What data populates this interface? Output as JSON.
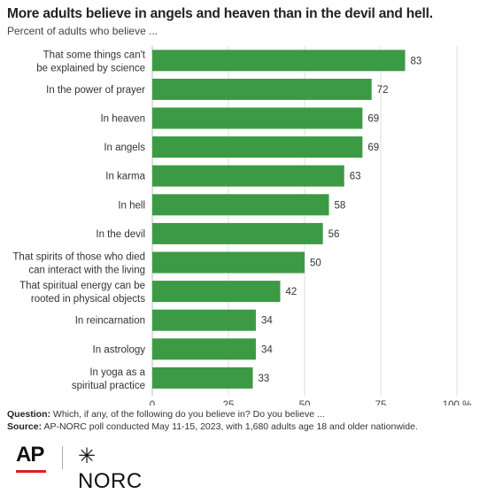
{
  "title": "More adults believe in angels and heaven than in the devil and hell.",
  "subtitle": "Percent of adults who believe ...",
  "colors": {
    "bar": "#3c9a45",
    "grid": "#dddddd",
    "axis": "#bbbbbb"
  },
  "chart_data": {
    "type": "bar",
    "orientation": "horizontal",
    "categories": [
      [
        "That some things can't",
        "be explained by science"
      ],
      [
        "In the power of prayer"
      ],
      [
        "In heaven"
      ],
      [
        "In angels"
      ],
      [
        "In karma"
      ],
      [
        "In hell"
      ],
      [
        "In the devil"
      ],
      [
        "That spirits of those who died",
        "can interact with the living"
      ],
      [
        "That spiritual energy can be",
        "rooted in physical objects"
      ],
      [
        "In reincarnation"
      ],
      [
        "In astrology"
      ],
      [
        "In yoga as a",
        "spiritual practice"
      ]
    ],
    "values": [
      83,
      72,
      69,
      69,
      63,
      58,
      56,
      50,
      42,
      34,
      34,
      33
    ],
    "xlim": [
      0,
      100
    ],
    "xticks": [
      0,
      25,
      50,
      75,
      100
    ],
    "xtick_labels": [
      "0",
      "25",
      "50",
      "75",
      "100 %"
    ],
    "grid": true
  },
  "notes": {
    "question_label": "Question:",
    "question_text": "Which, if any, of the following do you believe in? Do you believe ...",
    "source_label": "Source:",
    "source_text": "AP-NORC poll conducted May 11-15, 2023, with 1,680 adults age 18 and older nationwide."
  },
  "logos": {
    "ap": "AP",
    "norc_star": "✳",
    "norc": "NORC"
  }
}
